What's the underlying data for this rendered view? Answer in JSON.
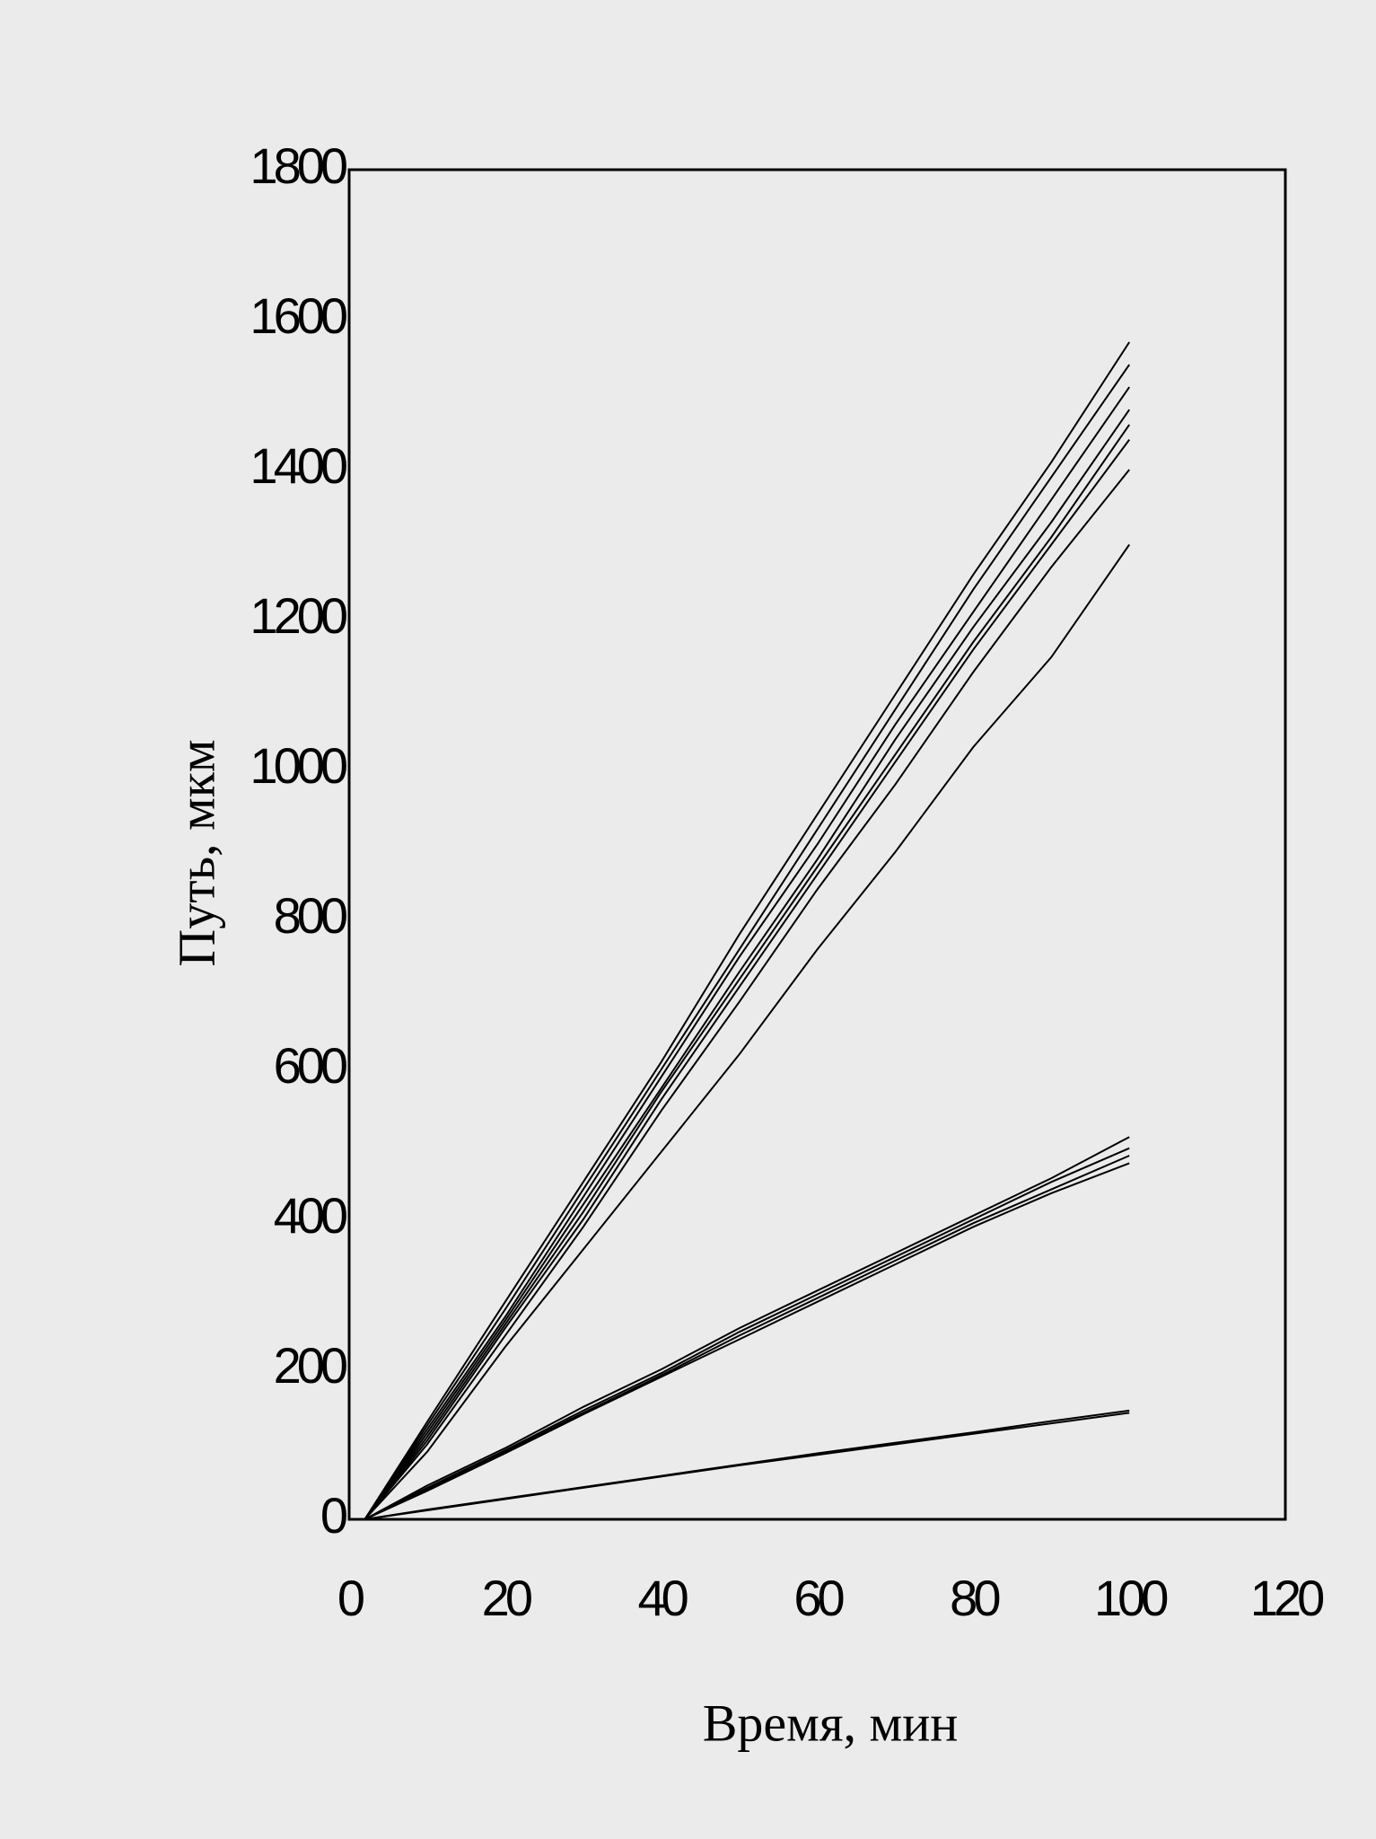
{
  "chart_data": {
    "type": "line",
    "x_label": "Время, мин",
    "y_label": "Путь, мкм",
    "x": [
      2,
      10,
      20,
      30,
      40,
      50,
      60,
      70,
      80,
      90,
      100
    ],
    "color": "#000000",
    "series": [
      {
        "values": [
          0,
          130,
          290,
          450,
          610,
          780,
          940,
          1100,
          1260,
          1410,
          1570
        ]
      },
      {
        "values": [
          0,
          125,
          280,
          440,
          600,
          760,
          920,
          1080,
          1240,
          1390,
          1540
        ]
      },
      {
        "values": [
          0,
          120,
          270,
          430,
          590,
          750,
          900,
          1060,
          1210,
          1360,
          1510
        ]
      },
      {
        "values": [
          0,
          115,
          265,
          420,
          575,
          730,
          880,
          1040,
          1190,
          1330,
          1480
        ]
      },
      {
        "values": [
          0,
          110,
          260,
          410,
          570,
          720,
          870,
          1020,
          1170,
          1310,
          1460
        ]
      },
      {
        "values": [
          0,
          105,
          255,
          400,
          560,
          710,
          860,
          1010,
          1160,
          1300,
          1440
        ]
      },
      {
        "values": [
          0,
          100,
          245,
          390,
          545,
          690,
          840,
          980,
          1130,
          1270,
          1400
        ]
      },
      {
        "values": [
          0,
          90,
          230,
          360,
          490,
          620,
          760,
          890,
          1030,
          1150,
          1300
        ]
      },
      {
        "values": [
          0,
          45,
          95,
          150,
          200,
          255,
          305,
          355,
          405,
          455,
          510
        ]
      },
      {
        "values": [
          0,
          42,
          92,
          145,
          195,
          250,
          300,
          350,
          400,
          450,
          495
        ]
      },
      {
        "values": [
          0,
          40,
          90,
          142,
          192,
          245,
          295,
          345,
          395,
          440,
          485
        ]
      },
      {
        "values": [
          0,
          38,
          88,
          140,
          190,
          240,
          290,
          340,
          390,
          435,
          475
        ]
      },
      {
        "values": [
          0,
          13,
          28,
          43,
          58,
          73,
          88,
          102,
          116,
          131,
          145
        ]
      },
      {
        "values": [
          0,
          12,
          27,
          42,
          57,
          72,
          86,
          100,
          114,
          128,
          142
        ]
      }
    ],
    "xlim": [
      0,
      120
    ],
    "xticks": [
      0,
      20,
      40,
      60,
      80,
      100,
      120
    ],
    "ylim": [
      0,
      1800
    ],
    "yticks": [
      0,
      200,
      400,
      600,
      800,
      1000,
      1200,
      1400,
      1600,
      1800
    ],
    "grid": false
  }
}
